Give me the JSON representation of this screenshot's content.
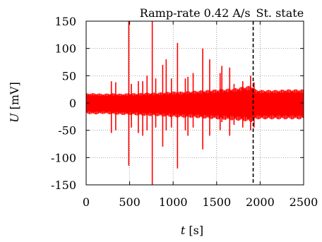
{
  "chart_data": {
    "type": "line",
    "title": "",
    "xlabel": "t [s]",
    "xlabel_var": "t",
    "xlabel_unit": "[s]",
    "ylabel": "U [mV]",
    "ylabel_var": "U",
    "ylabel_unit": "[mV]",
    "xlim": [
      0,
      2500
    ],
    "ylim": [
      -150,
      150
    ],
    "xticks": [
      0,
      500,
      1000,
      1500,
      2000,
      2500
    ],
    "xtick_labels": [
      "0",
      "500",
      "1000",
      "1500",
      "2000",
      "2500"
    ],
    "yticks": [
      -150,
      -100,
      -50,
      0,
      50,
      100,
      150
    ],
    "ytick_labels": [
      "-150",
      "-100",
      "-50",
      "0",
      "50",
      "100",
      "150"
    ],
    "grid": true,
    "annotations": [
      {
        "text": "Ramp-rate 0.42 A/s",
        "region": [
          0,
          1920
        ]
      },
      {
        "text": "St. state",
        "region": [
          1920,
          2500
        ]
      }
    ],
    "vline": {
      "x": 1920,
      "style": "dashed",
      "color": "#000000"
    },
    "series": [
      {
        "color": "#ff0000",
        "envelope": {
          "x": [
            0,
            100,
            200,
            300,
            400,
            500,
            600,
            700,
            800,
            900,
            1000,
            1100,
            1200,
            1300,
            1400,
            1500,
            1600,
            1700,
            1800,
            1900,
            1950,
            2000,
            2100,
            2200,
            2300,
            2400,
            2500
          ],
          "upper": [
            18,
            18,
            17,
            18,
            17,
            18,
            18,
            19,
            19,
            20,
            21,
            21,
            22,
            23,
            24,
            25,
            26,
            27,
            30,
            32,
            25,
            24,
            24,
            24,
            25,
            25,
            25
          ],
          "lower": [
            -20,
            -21,
            -20,
            -21,
            -22,
            -22,
            -23,
            -24,
            -24,
            -25,
            -26,
            -27,
            -27,
            -28,
            -29,
            -30,
            -31,
            -32,
            -33,
            -35,
            -30,
            -30,
            -30,
            -30,
            -30,
            -30,
            -30
          ]
        },
        "spikes": [
          {
            "x": 15,
            "min": -10,
            "max": 15
          },
          {
            "x": 290,
            "min": -55,
            "max": 40
          },
          {
            "x": 340,
            "min": -50,
            "max": 38
          },
          {
            "x": 490,
            "min": -115,
            "max": 150
          },
          {
            "x": 520,
            "min": -45,
            "max": 35
          },
          {
            "x": 600,
            "min": -55,
            "max": 40
          },
          {
            "x": 650,
            "min": -60,
            "max": 40
          },
          {
            "x": 700,
            "min": -50,
            "max": 50
          },
          {
            "x": 760,
            "min": -150,
            "max": 150
          },
          {
            "x": 800,
            "min": -45,
            "max": 45
          },
          {
            "x": 880,
            "min": -80,
            "max": 70
          },
          {
            "x": 920,
            "min": -50,
            "max": 80
          },
          {
            "x": 980,
            "min": -45,
            "max": 45
          },
          {
            "x": 1050,
            "min": -120,
            "max": 110
          },
          {
            "x": 1140,
            "min": -50,
            "max": 45
          },
          {
            "x": 1170,
            "min": -60,
            "max": 48
          },
          {
            "x": 1230,
            "min": -45,
            "max": 55
          },
          {
            "x": 1340,
            "min": -85,
            "max": 100
          },
          {
            "x": 1420,
            "min": -60,
            "max": 80
          },
          {
            "x": 1540,
            "min": -50,
            "max": 55
          },
          {
            "x": 1560,
            "min": -35,
            "max": 68
          },
          {
            "x": 1650,
            "min": -60,
            "max": 65
          },
          {
            "x": 1700,
            "min": -40,
            "max": 35
          },
          {
            "x": 1800,
            "min": -45,
            "max": 40
          },
          {
            "x": 1890,
            "min": -50,
            "max": 50
          },
          {
            "x": 1930,
            "min": -45,
            "max": 38
          }
        ]
      }
    ]
  }
}
